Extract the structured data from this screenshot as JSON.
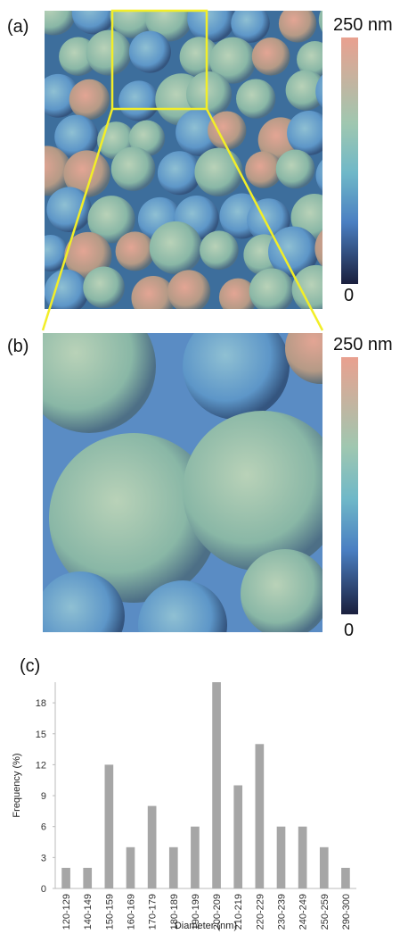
{
  "panels": {
    "a": {
      "label": "(a)",
      "colorbar_max": "250 nm",
      "colorbar_min": "0"
    },
    "b": {
      "label": "(b)",
      "colorbar_max": "250 nm",
      "colorbar_min": "0"
    },
    "c": {
      "label": "(c)"
    }
  },
  "chart_data": {
    "type": "bar",
    "x_label": "Diameter (nm)",
    "y_label": "Frequency (%)",
    "categories": [
      "120-129",
      "140-149",
      "150-159",
      "160-169",
      "170-179",
      "180-189",
      "190-199",
      "200-209",
      "210-219",
      "220-229",
      "230-239",
      "240-249",
      "250-259",
      "290-300"
    ],
    "values": [
      2,
      2,
      12,
      4,
      8,
      4,
      6,
      20,
      10,
      14,
      6,
      6,
      4,
      2
    ],
    "color": "#a6a6a6",
    "ylim": [
      0,
      20
    ],
    "yticks": [
      0,
      3,
      6,
      9,
      12,
      15,
      18
    ],
    "grid": false
  }
}
